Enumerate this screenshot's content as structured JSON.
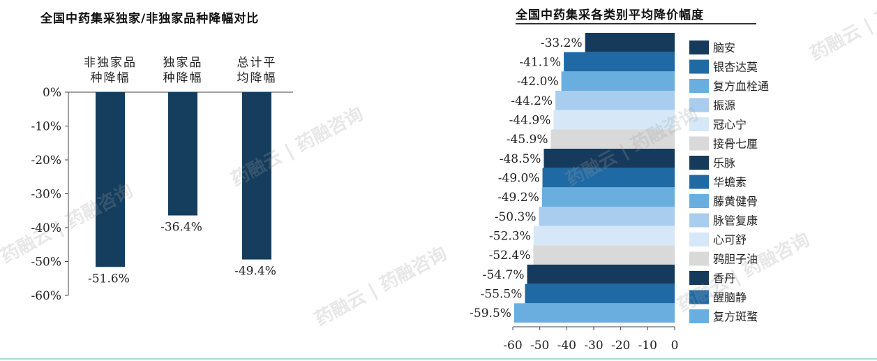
{
  "left_chart": {
    "title": "全国中药集采独家/非独家品种降幅对比",
    "chart_data": {
      "type": "bar",
      "categories": [
        "非独家品种降幅",
        "独家品种降幅",
        "总计平均降幅"
      ],
      "category_lines": [
        [
          "非独家品",
          "种降幅"
        ],
        [
          "独家品",
          "种降幅"
        ],
        [
          "总计平",
          "均降幅"
        ]
      ],
      "values": [
        -51.6,
        -36.4,
        -49.4
      ],
      "data_labels": [
        "-51.6%",
        "-36.4%",
        "-49.4%"
      ],
      "yticks": [
        "0%",
        "-10%",
        "-20%",
        "-30%",
        "-40%",
        "-50%",
        "-60%"
      ],
      "ylim": [
        -60,
        0
      ],
      "bar_color": "#143d5e",
      "grid": false
    }
  },
  "right_chart": {
    "title": "全国中药集采各类别平均降价幅度",
    "chart_data": {
      "type": "bar",
      "orientation": "horizontal",
      "categories": [
        "脑安",
        "银杏达莫",
        "复方血栓通",
        "振源",
        "冠心宁",
        "接骨七厘",
        "乐脉",
        "华蟾素",
        "藤黄健骨",
        "脉管复康",
        "心可舒",
        "鸦胆子油",
        "香丹",
        "醒脑静",
        "复方斑蝥"
      ],
      "values": [
        -33.2,
        -41.1,
        -42.0,
        -44.2,
        -44.9,
        -45.9,
        -48.5,
        -49.0,
        -49.2,
        -50.3,
        -52.3,
        -52.4,
        -54.7,
        -55.5,
        -59.5
      ],
      "data_labels": [
        "-33.2%",
        "-41.1%",
        "-42.0%",
        "-44.2%",
        "-44.9%",
        "-45.9%",
        "-48.5%",
        "-49.0%",
        "-49.2%",
        "-50.3%",
        "-52.3%",
        "-52.4%",
        "-54.7%",
        "-55.5%",
        "-59.5%"
      ],
      "colors": [
        "#163a5c",
        "#1f6aa5",
        "#6aaee0",
        "#a9cdee",
        "#d6e8f7",
        "#d9d9d9",
        "#163a5c",
        "#1f6aa5",
        "#6aaee0",
        "#a9cdee",
        "#d6e8f7",
        "#d9d9d9",
        "#163a5c",
        "#1f6aa5",
        "#6aaee0"
      ],
      "xticks": [
        "-60",
        "-50",
        "-40",
        "-30",
        "-20",
        "-10",
        "0"
      ],
      "xlim": [
        -60,
        0
      ],
      "legend_position": "right",
      "grid": false
    }
  },
  "watermark": {
    "text": "药融云 | 药融咨询"
  }
}
